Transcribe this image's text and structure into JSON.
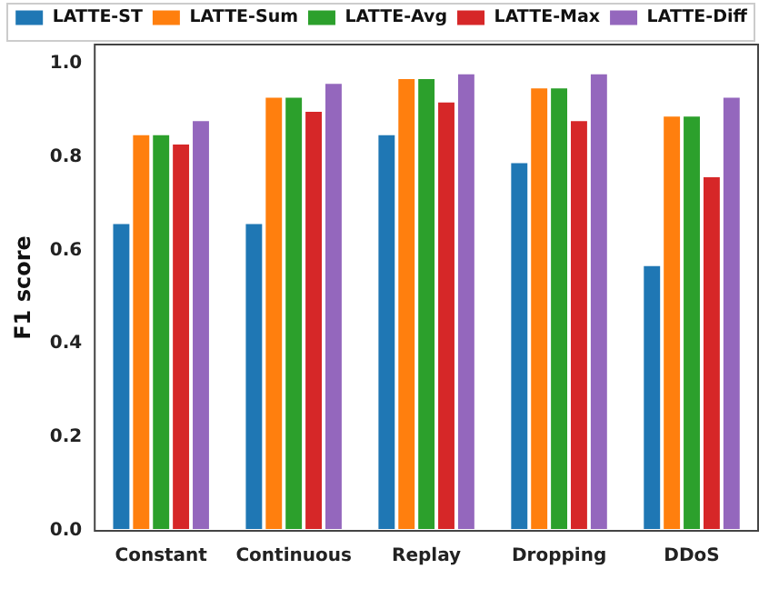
{
  "chart_data": {
    "type": "bar",
    "ylabel": "F1 score",
    "categories": [
      "Constant",
      "Continuous",
      "Replay",
      "Dropping",
      "DDoS"
    ],
    "series": [
      {
        "name": "LATTE-ST",
        "color": "#1f77b4",
        "values": [
          0.66,
          0.66,
          0.85,
          0.79,
          0.57
        ]
      },
      {
        "name": "LATTE-Sum",
        "color": "#ff7f0e",
        "values": [
          0.85,
          0.93,
          0.97,
          0.95,
          0.89
        ]
      },
      {
        "name": "LATTE-Avg",
        "color": "#2ca02c",
        "values": [
          0.85,
          0.93,
          0.97,
          0.95,
          0.89
        ]
      },
      {
        "name": "LATTE-Max",
        "color": "#d62728",
        "values": [
          0.83,
          0.9,
          0.92,
          0.88,
          0.76
        ]
      },
      {
        "name": "LATTE-Diff",
        "color": "#9467bd",
        "values": [
          0.88,
          0.96,
          0.98,
          0.98,
          0.93
        ]
      }
    ],
    "ylim": [
      0,
      1.04
    ],
    "yticks": [
      {
        "value": 0,
        "label": "0.0"
      },
      0.2,
      0.4,
      0.6,
      0.8,
      {
        "value": 1,
        "label": "1.0"
      }
    ],
    "grid": false,
    "legend": "top"
  }
}
